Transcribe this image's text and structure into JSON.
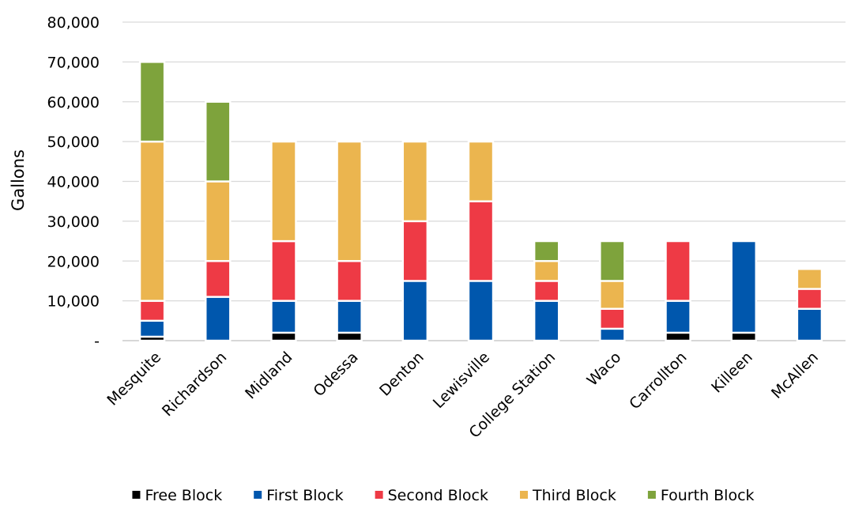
{
  "chart_data": {
    "type": "bar",
    "stacked": true,
    "ylabel": "Gallons",
    "xlabel": "",
    "ylim": [
      0,
      80000
    ],
    "y_ticks": [
      {
        "value": 0,
        "label": "-"
      },
      {
        "value": 10000,
        "label": "10,000"
      },
      {
        "value": 20000,
        "label": "20,000"
      },
      {
        "value": 30000,
        "label": "30,000"
      },
      {
        "value": 40000,
        "label": "40,000"
      },
      {
        "value": 50000,
        "label": "50,000"
      },
      {
        "value": 60000,
        "label": "60,000"
      },
      {
        "value": 70000,
        "label": "70,000"
      },
      {
        "value": 80000,
        "label": "80,000"
      }
    ],
    "grid": true,
    "legend_position": "bottom",
    "categories": [
      "Mesquite",
      "Richardson",
      "Midland",
      "Odessa",
      "Denton",
      "Lewisville",
      "College Station",
      "Waco",
      "Carrollton",
      "Killeen",
      "McAllen"
    ],
    "series": [
      {
        "name": "Free Block",
        "color": "#000000",
        "values": [
          1000,
          0,
          2000,
          2000,
          0,
          0,
          0,
          0,
          2000,
          2000,
          0
        ]
      },
      {
        "name": "First Block",
        "color": "#0057ad",
        "values": [
          4000,
          11000,
          8000,
          8000,
          15000,
          15000,
          10000,
          3000,
          8000,
          23000,
          8000
        ]
      },
      {
        "name": "Second Block",
        "color": "#ee3a45",
        "values": [
          5000,
          9000,
          15000,
          10000,
          15000,
          20000,
          5000,
          5000,
          15000,
          0,
          5000
        ]
      },
      {
        "name": "Third Block",
        "color": "#ebb54f",
        "values": [
          40000,
          20000,
          25000,
          30000,
          20000,
          15000,
          5000,
          7000,
          0,
          0,
          5000
        ]
      },
      {
        "name": "Fourth Block",
        "color": "#7ea33c",
        "values": [
          20000,
          20000,
          0,
          0,
          0,
          0,
          5000,
          10000,
          0,
          0,
          0
        ]
      }
    ]
  }
}
